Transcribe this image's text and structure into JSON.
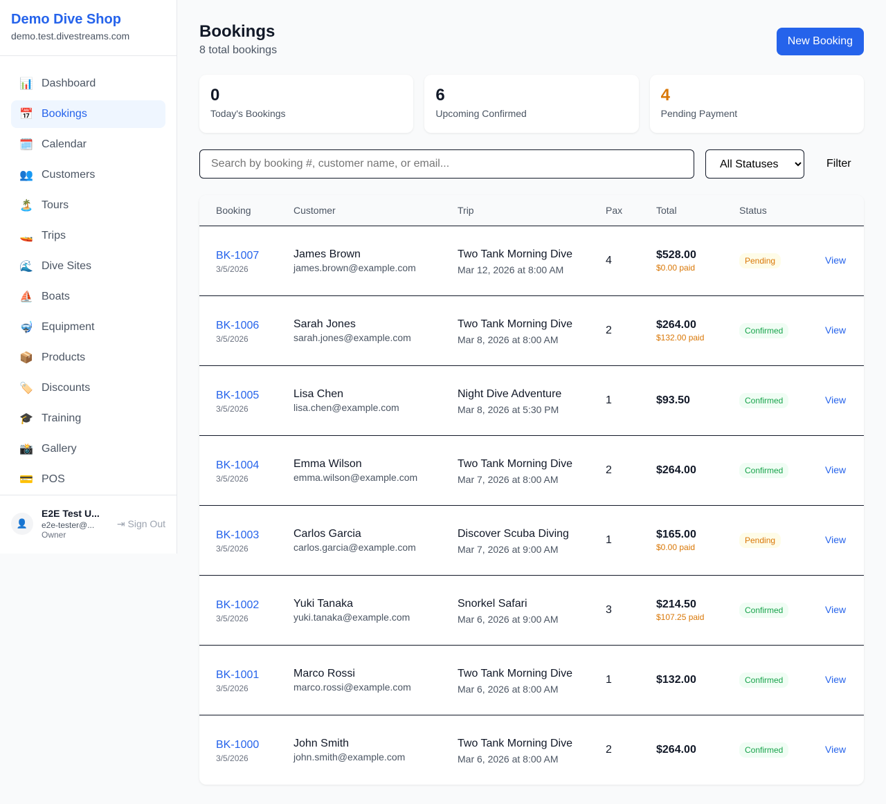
{
  "shop": {
    "name": "Demo Dive Shop",
    "domain": "demo.test.divestreams.com"
  },
  "nav": [
    {
      "icon": "📊",
      "label": "Dashboard",
      "name": "chart-icon"
    },
    {
      "icon": "📅",
      "label": "Bookings",
      "name": "calendar-icon",
      "active": true
    },
    {
      "icon": "🗓️",
      "label": "Calendar",
      "name": "spiral-calendar-icon"
    },
    {
      "icon": "👥",
      "label": "Customers",
      "name": "users-icon"
    },
    {
      "icon": "🏝️",
      "label": "Tours",
      "name": "island-icon"
    },
    {
      "icon": "🚤",
      "label": "Trips",
      "name": "speedboat-icon"
    },
    {
      "icon": "🌊",
      "label": "Dive Sites",
      "name": "wave-icon"
    },
    {
      "icon": "⛵",
      "label": "Boats",
      "name": "sailboat-icon"
    },
    {
      "icon": "🤿",
      "label": "Equipment",
      "name": "diving-mask-icon"
    },
    {
      "icon": "📦",
      "label": "Products",
      "name": "package-icon"
    },
    {
      "icon": "🏷️",
      "label": "Discounts",
      "name": "tag-icon"
    },
    {
      "icon": "🎓",
      "label": "Training",
      "name": "graduation-cap-icon"
    },
    {
      "icon": "📸",
      "label": "Gallery",
      "name": "camera-icon"
    },
    {
      "icon": "💳",
      "label": "POS",
      "name": "credit-card-icon"
    }
  ],
  "user": {
    "name": "E2E Test U...",
    "email": "e2e-tester@...",
    "role": "Owner",
    "sign_out": "Sign Out"
  },
  "header": {
    "title": "Bookings",
    "subtitle": "8 total bookings",
    "new_button": "New Booking"
  },
  "stats": [
    {
      "value": "0",
      "label": "Today's Bookings",
      "color": "#111827"
    },
    {
      "value": "6",
      "label": "Upcoming Confirmed",
      "color": "#111827"
    },
    {
      "value": "4",
      "label": "Pending Payment",
      "color": "#d97706"
    }
  ],
  "filters": {
    "search_placeholder": "Search by booking #, customer name, or email...",
    "status_selected": "All Statuses",
    "filter_button": "Filter"
  },
  "columns": [
    "Booking",
    "Customer",
    "Trip",
    "Pax",
    "Total",
    "Status",
    ""
  ],
  "bookings": [
    {
      "id": "BK-1007",
      "date": "3/5/2026",
      "customer": "James Brown",
      "email": "james.brown@example.com",
      "trip": "Two Tank Morning Dive",
      "when": "Mar 12, 2026 at 8:00 AM",
      "pax": "4",
      "total": "$528.00",
      "paid": "$0.00 paid",
      "status": "Pending"
    },
    {
      "id": "BK-1006",
      "date": "3/5/2026",
      "customer": "Sarah Jones",
      "email": "sarah.jones@example.com",
      "trip": "Two Tank Morning Dive",
      "when": "Mar 8, 2026 at 8:00 AM",
      "pax": "2",
      "total": "$264.00",
      "paid": "$132.00 paid",
      "status": "Confirmed"
    },
    {
      "id": "BK-1005",
      "date": "3/5/2026",
      "customer": "Lisa Chen",
      "email": "lisa.chen@example.com",
      "trip": "Night Dive Adventure",
      "when": "Mar 8, 2026 at 5:30 PM",
      "pax": "1",
      "total": "$93.50",
      "paid": "",
      "status": "Confirmed"
    },
    {
      "id": "BK-1004",
      "date": "3/5/2026",
      "customer": "Emma Wilson",
      "email": "emma.wilson@example.com",
      "trip": "Two Tank Morning Dive",
      "when": "Mar 7, 2026 at 8:00 AM",
      "pax": "2",
      "total": "$264.00",
      "paid": "",
      "status": "Confirmed"
    },
    {
      "id": "BK-1003",
      "date": "3/5/2026",
      "customer": "Carlos Garcia",
      "email": "carlos.garcia@example.com",
      "trip": "Discover Scuba Diving",
      "when": "Mar 7, 2026 at 9:00 AM",
      "pax": "1",
      "total": "$165.00",
      "paid": "$0.00 paid",
      "status": "Pending"
    },
    {
      "id": "BK-1002",
      "date": "3/5/2026",
      "customer": "Yuki Tanaka",
      "email": "yuki.tanaka@example.com",
      "trip": "Snorkel Safari",
      "when": "Mar 6, 2026 at 9:00 AM",
      "pax": "3",
      "total": "$214.50",
      "paid": "$107.25 paid",
      "status": "Confirmed"
    },
    {
      "id": "BK-1001",
      "date": "3/5/2026",
      "customer": "Marco Rossi",
      "email": "marco.rossi@example.com",
      "trip": "Two Tank Morning Dive",
      "when": "Mar 6, 2026 at 8:00 AM",
      "pax": "1",
      "total": "$132.00",
      "paid": "",
      "status": "Confirmed"
    },
    {
      "id": "BK-1000",
      "date": "3/5/2026",
      "customer": "John Smith",
      "email": "john.smith@example.com",
      "trip": "Two Tank Morning Dive",
      "when": "Mar 6, 2026 at 8:00 AM",
      "pax": "2",
      "total": "$264.00",
      "paid": "",
      "status": "Confirmed"
    }
  ],
  "view_label": "View"
}
